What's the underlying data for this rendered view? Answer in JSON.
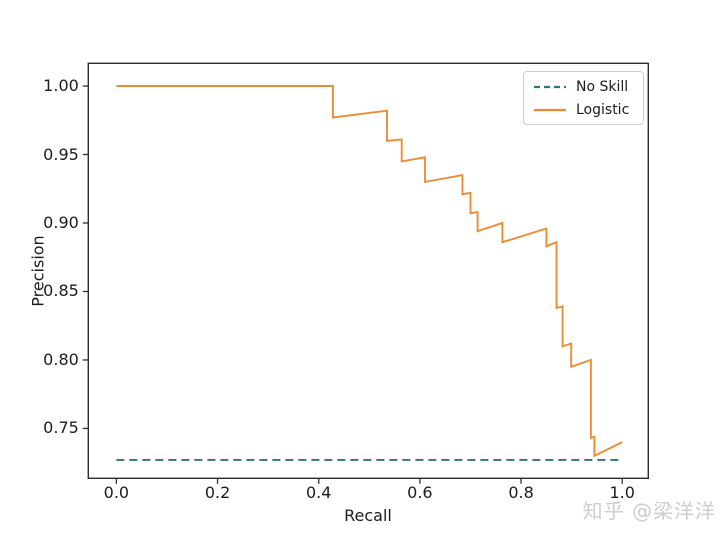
{
  "figure": {
    "background": "#ffffff"
  },
  "watermark": {
    "text": "知乎 @梁洋洋",
    "color": "#cdcdcd"
  },
  "chart_data": {
    "type": "line",
    "title": "",
    "xlabel": "Recall",
    "ylabel": "Precision",
    "xlim": [
      -0.0555,
      1.0515
    ],
    "ylim": [
      0.7136,
      1.0166
    ],
    "grid": false,
    "xticks": [
      0.0,
      0.2,
      0.4,
      0.6,
      0.8,
      1.0
    ],
    "xtick_labels": [
      "0.0",
      "0.2",
      "0.4",
      "0.6",
      "0.8",
      "1.0"
    ],
    "yticks": [
      0.75,
      0.8,
      0.85,
      0.9,
      0.95,
      1.0
    ],
    "ytick_labels": [
      "0.75",
      "0.80",
      "0.85",
      "0.90",
      "0.95",
      "1.00"
    ],
    "axis_color": "#2e2e2e",
    "tick_label_color": "#1c1c1c",
    "legend": {
      "position": "upper right",
      "entries": [
        "No Skill",
        "Logistic"
      ]
    },
    "series": [
      {
        "name": "No Skill",
        "linestyle": "dashed",
        "color": "#2f7286",
        "x": [
          0.0,
          1.0
        ],
        "y": [
          0.727,
          0.727
        ]
      },
      {
        "name": "Logistic",
        "linestyle": "solid",
        "color": "#ee8c33",
        "x": [
          0.0,
          0.428,
          0.428,
          0.535,
          0.535,
          0.564,
          0.564,
          0.61,
          0.61,
          0.684,
          0.684,
          0.7,
          0.7,
          0.714,
          0.714,
          0.763,
          0.763,
          0.85,
          0.85,
          0.87,
          0.87,
          0.882,
          0.882,
          0.899,
          0.899,
          0.938,
          0.938,
          0.945,
          0.945,
          1.0
        ],
        "y": [
          1.0,
          1.0,
          0.977,
          0.982,
          0.96,
          0.961,
          0.945,
          0.948,
          0.93,
          0.935,
          0.921,
          0.922,
          0.907,
          0.908,
          0.894,
          0.9,
          0.886,
          0.896,
          0.883,
          0.886,
          0.838,
          0.839,
          0.81,
          0.812,
          0.795,
          0.8,
          0.743,
          0.744,
          0.73,
          0.74
        ]
      }
    ]
  }
}
